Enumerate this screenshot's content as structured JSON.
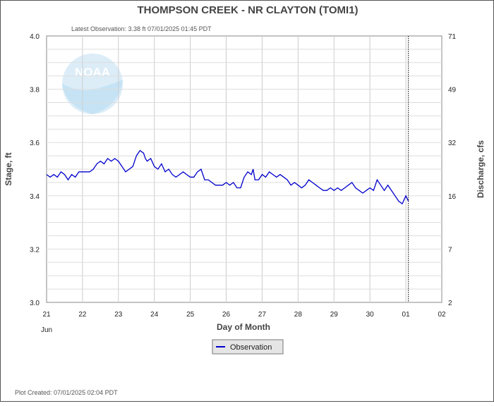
{
  "chart_data": {
    "type": "line",
    "title": "THOMPSON CREEK - NR CLAYTON  (TOMI1)",
    "latest_observation": "Latest Observation: 3.38 ft 07/01/2025 01:45 PDT",
    "plot_created": "Plot Created: 07/01/2025 02:04 PDT",
    "xlabel": "Day of Month",
    "ylabel_left": "Stage, ft",
    "ylabel_right": "Discharge, cfs",
    "x_ticks": [
      "21",
      "22",
      "23",
      "24",
      "25",
      "26",
      "27",
      "28",
      "29",
      "30",
      "01",
      "02"
    ],
    "x_sublabel": "Jun",
    "ylim": [
      3.0,
      4.0
    ],
    "y_ticks_left": [
      "3.0",
      "3.2",
      "3.4",
      "3.6",
      "3.8",
      "4.0"
    ],
    "y_ticks_right": [
      {
        "stage": 3.0,
        "label": "2"
      },
      {
        "stage": 3.2,
        "label": "7"
      },
      {
        "stage": 3.4,
        "label": "16"
      },
      {
        "stage": 3.6,
        "label": "32"
      },
      {
        "stage": 3.8,
        "label": "49"
      },
      {
        "stage": 4.0,
        "label": "71"
      }
    ],
    "grid": true,
    "marker_x": 10.07,
    "series": [
      {
        "name": "Observation",
        "color": "#0000cc",
        "x": [
          0.0,
          0.1,
          0.2,
          0.3,
          0.4,
          0.5,
          0.6,
          0.7,
          0.8,
          0.9,
          1.0,
          1.1,
          1.2,
          1.3,
          1.4,
          1.5,
          1.6,
          1.7,
          1.8,
          1.9,
          2.0,
          2.1,
          2.2,
          2.3,
          2.4,
          2.5,
          2.6,
          2.7,
          2.75,
          2.8,
          2.9,
          3.0,
          3.1,
          3.2,
          3.3,
          3.4,
          3.5,
          3.6,
          3.7,
          3.8,
          3.9,
          4.0,
          4.1,
          4.2,
          4.3,
          4.4,
          4.5,
          4.6,
          4.7,
          4.8,
          4.9,
          5.0,
          5.1,
          5.2,
          5.3,
          5.4,
          5.5,
          5.6,
          5.7,
          5.75,
          5.8,
          5.9,
          6.0,
          6.1,
          6.2,
          6.3,
          6.4,
          6.5,
          6.6,
          6.7,
          6.8,
          6.9,
          7.0,
          7.1,
          7.2,
          7.3,
          7.4,
          7.5,
          7.6,
          7.7,
          7.8,
          7.9,
          8.0,
          8.1,
          8.2,
          8.3,
          8.4,
          8.5,
          8.6,
          8.7,
          8.8,
          8.9,
          9.0,
          9.1,
          9.2,
          9.3,
          9.4,
          9.5,
          9.6,
          9.7,
          9.8,
          9.9,
          10.0,
          10.07
        ],
        "y": [
          3.48,
          3.47,
          3.48,
          3.47,
          3.49,
          3.48,
          3.46,
          3.48,
          3.47,
          3.49,
          3.49,
          3.49,
          3.49,
          3.5,
          3.52,
          3.53,
          3.52,
          3.54,
          3.53,
          3.54,
          3.53,
          3.51,
          3.49,
          3.5,
          3.51,
          3.55,
          3.57,
          3.56,
          3.54,
          3.53,
          3.54,
          3.51,
          3.5,
          3.52,
          3.49,
          3.5,
          3.48,
          3.47,
          3.48,
          3.49,
          3.48,
          3.47,
          3.47,
          3.49,
          3.5,
          3.46,
          3.46,
          3.45,
          3.44,
          3.44,
          3.44,
          3.45,
          3.44,
          3.45,
          3.43,
          3.43,
          3.47,
          3.49,
          3.48,
          3.5,
          3.46,
          3.46,
          3.48,
          3.47,
          3.49,
          3.48,
          3.47,
          3.48,
          3.47,
          3.46,
          3.44,
          3.45,
          3.44,
          3.43,
          3.44,
          3.46,
          3.45,
          3.44,
          3.43,
          3.42,
          3.42,
          3.43,
          3.42,
          3.43,
          3.42,
          3.43,
          3.44,
          3.45,
          3.43,
          3.42,
          3.41,
          3.42,
          3.43,
          3.42,
          3.46,
          3.44,
          3.42,
          3.44,
          3.42,
          3.4,
          3.38,
          3.37,
          3.4,
          3.38
        ]
      }
    ]
  },
  "logo": {
    "text": "NOAA",
    "color": "#cfe6f5"
  }
}
